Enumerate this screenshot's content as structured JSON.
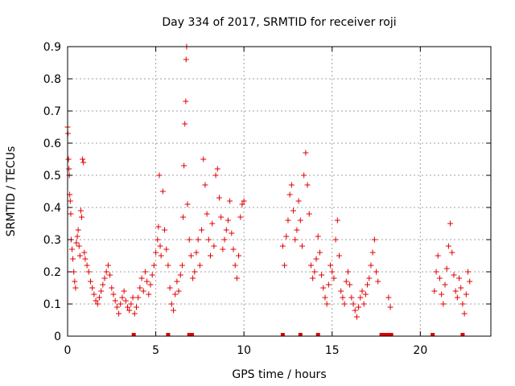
{
  "chart_data": {
    "type": "scatter",
    "title": "Day 334 of 2017, SRMTID for receiver roji",
    "xlabel": "GPS time / hours",
    "ylabel": "SRMTID / TECUs",
    "xlim": [
      0,
      24
    ],
    "ylim": [
      0,
      0.9
    ],
    "x_ticks": [
      0,
      5,
      10,
      15,
      20
    ],
    "y_ticks": [
      0,
      0.1,
      0.2,
      0.3,
      0.4,
      0.5,
      0.6,
      0.7,
      0.8,
      0.9
    ],
    "x_tick_labels": [
      "0",
      "5",
      "10",
      "15",
      "20"
    ],
    "y_tick_labels": [
      "0",
      "0.1",
      "0.2",
      "0.3",
      "0.4",
      "0.5",
      "0.6",
      "0.7",
      "0.8",
      "0.9"
    ],
    "grid": true,
    "marker": "+",
    "color": "#e00000",
    "series": [
      {
        "name": "SRMTID",
        "points": [
          [
            0.0,
            0.65
          ],
          [
            0.02,
            0.63
          ],
          [
            0.05,
            0.55
          ],
          [
            0.08,
            0.52
          ],
          [
            0.1,
            0.5
          ],
          [
            0.12,
            0.44
          ],
          [
            0.15,
            0.42
          ],
          [
            0.18,
            0.38
          ],
          [
            0.2,
            0.3
          ],
          [
            0.25,
            0.27
          ],
          [
            0.3,
            0.24
          ],
          [
            0.35,
            0.2
          ],
          [
            0.4,
            0.17
          ],
          [
            0.45,
            0.15
          ],
          [
            0.5,
            0.29
          ],
          [
            0.55,
            0.31
          ],
          [
            0.6,
            0.33
          ],
          [
            0.65,
            0.28
          ],
          [
            0.7,
            0.25
          ],
          [
            0.75,
            0.39
          ],
          [
            0.8,
            0.37
          ],
          [
            0.85,
            0.55
          ],
          [
            0.9,
            0.54
          ],
          [
            0.95,
            0.26
          ],
          [
            1.0,
            0.24
          ],
          [
            1.1,
            0.22
          ],
          [
            1.2,
            0.2
          ],
          [
            1.3,
            0.17
          ],
          [
            1.4,
            0.15
          ],
          [
            1.5,
            0.13
          ],
          [
            1.6,
            0.11
          ],
          [
            1.7,
            0.1
          ],
          [
            1.8,
            0.12
          ],
          [
            1.9,
            0.14
          ],
          [
            2.0,
            0.16
          ],
          [
            2.1,
            0.18
          ],
          [
            2.2,
            0.2
          ],
          [
            2.3,
            0.22
          ],
          [
            2.4,
            0.19
          ],
          [
            2.5,
            0.15
          ],
          [
            2.6,
            0.13
          ],
          [
            2.7,
            0.11
          ],
          [
            2.8,
            0.09
          ],
          [
            2.9,
            0.07
          ],
          [
            3.0,
            0.1
          ],
          [
            3.1,
            0.12
          ],
          [
            3.2,
            0.14
          ],
          [
            3.3,
            0.11
          ],
          [
            3.4,
            0.09
          ],
          [
            3.5,
            0.08
          ],
          [
            3.6,
            0.1
          ],
          [
            3.7,
            0.12
          ],
          [
            3.8,
            0.07
          ],
          [
            3.9,
            0.09
          ],
          [
            4.0,
            0.12
          ],
          [
            4.1,
            0.15
          ],
          [
            4.2,
            0.18
          ],
          [
            4.3,
            0.14
          ],
          [
            4.4,
            0.2
          ],
          [
            4.5,
            0.17
          ],
          [
            4.6,
            0.13
          ],
          [
            4.7,
            0.16
          ],
          [
            4.8,
            0.19
          ],
          [
            4.9,
            0.22
          ],
          [
            5.0,
            0.26
          ],
          [
            5.1,
            0.3
          ],
          [
            5.15,
            0.34
          ],
          [
            5.2,
            0.5
          ],
          [
            5.25,
            0.28
          ],
          [
            5.3,
            0.25
          ],
          [
            5.4,
            0.45
          ],
          [
            5.5,
            0.33
          ],
          [
            5.6,
            0.27
          ],
          [
            5.7,
            0.22
          ],
          [
            5.8,
            0.15
          ],
          [
            5.9,
            0.1
          ],
          [
            6.0,
            0.08
          ],
          [
            6.1,
            0.13
          ],
          [
            6.2,
            0.17
          ],
          [
            6.3,
            0.14
          ],
          [
            6.4,
            0.19
          ],
          [
            6.5,
            0.22
          ],
          [
            6.55,
            0.37
          ],
          [
            6.6,
            0.53
          ],
          [
            6.65,
            0.66
          ],
          [
            6.7,
            0.73
          ],
          [
            6.72,
            0.86
          ],
          [
            6.75,
            0.9
          ],
          [
            6.8,
            0.41
          ],
          [
            6.9,
            0.3
          ],
          [
            7.0,
            0.25
          ],
          [
            7.1,
            0.18
          ],
          [
            7.2,
            0.2
          ],
          [
            7.3,
            0.26
          ],
          [
            7.4,
            0.3
          ],
          [
            7.5,
            0.22
          ],
          [
            7.6,
            0.33
          ],
          [
            7.7,
            0.55
          ],
          [
            7.8,
            0.47
          ],
          [
            7.9,
            0.38
          ],
          [
            8.0,
            0.3
          ],
          [
            8.1,
            0.25
          ],
          [
            8.2,
            0.35
          ],
          [
            8.3,
            0.28
          ],
          [
            8.4,
            0.5
          ],
          [
            8.5,
            0.52
          ],
          [
            8.6,
            0.43
          ],
          [
            8.7,
            0.37
          ],
          [
            8.8,
            0.27
          ],
          [
            8.9,
            0.3
          ],
          [
            9.0,
            0.33
          ],
          [
            9.1,
            0.36
          ],
          [
            9.2,
            0.42
          ],
          [
            9.3,
            0.32
          ],
          [
            9.4,
            0.27
          ],
          [
            9.5,
            0.22
          ],
          [
            9.6,
            0.18
          ],
          [
            9.7,
            0.25
          ],
          [
            9.8,
            0.37
          ],
          [
            9.9,
            0.41
          ],
          [
            10.0,
            0.42
          ],
          [
            12.2,
            0.28
          ],
          [
            12.3,
            0.22
          ],
          [
            12.4,
            0.31
          ],
          [
            12.5,
            0.36
          ],
          [
            12.6,
            0.44
          ],
          [
            12.7,
            0.47
          ],
          [
            12.8,
            0.39
          ],
          [
            12.9,
            0.3
          ],
          [
            13.0,
            0.33
          ],
          [
            13.1,
            0.42
          ],
          [
            13.2,
            0.36
          ],
          [
            13.3,
            0.28
          ],
          [
            13.4,
            0.5
          ],
          [
            13.5,
            0.57
          ],
          [
            13.6,
            0.47
          ],
          [
            13.7,
            0.38
          ],
          [
            13.8,
            0.22
          ],
          [
            13.9,
            0.18
          ],
          [
            14.0,
            0.2
          ],
          [
            14.1,
            0.24
          ],
          [
            14.2,
            0.31
          ],
          [
            14.3,
            0.26
          ],
          [
            14.4,
            0.19
          ],
          [
            14.5,
            0.15
          ],
          [
            14.6,
            0.12
          ],
          [
            14.7,
            0.1
          ],
          [
            14.8,
            0.16
          ],
          [
            14.9,
            0.22
          ],
          [
            15.0,
            0.2
          ],
          [
            15.1,
            0.18
          ],
          [
            15.2,
            0.3
          ],
          [
            15.3,
            0.36
          ],
          [
            15.4,
            0.25
          ],
          [
            15.5,
            0.14
          ],
          [
            15.6,
            0.12
          ],
          [
            15.7,
            0.1
          ],
          [
            15.8,
            0.17
          ],
          [
            15.9,
            0.2
          ],
          [
            16.0,
            0.16
          ],
          [
            16.1,
            0.12
          ],
          [
            16.2,
            0.1
          ],
          [
            16.3,
            0.08
          ],
          [
            16.4,
            0.06
          ],
          [
            16.5,
            0.09
          ],
          [
            16.6,
            0.12
          ],
          [
            16.7,
            0.14
          ],
          [
            16.8,
            0.1
          ],
          [
            16.9,
            0.13
          ],
          [
            17.0,
            0.16
          ],
          [
            17.1,
            0.18
          ],
          [
            17.2,
            0.22
          ],
          [
            17.3,
            0.26
          ],
          [
            17.4,
            0.3
          ],
          [
            17.5,
            0.2
          ],
          [
            17.6,
            0.17
          ],
          [
            18.2,
            0.12
          ],
          [
            18.3,
            0.09
          ],
          [
            20.8,
            0.14
          ],
          [
            20.9,
            0.2
          ],
          [
            21.0,
            0.25
          ],
          [
            21.1,
            0.18
          ],
          [
            21.2,
            0.13
          ],
          [
            21.3,
            0.1
          ],
          [
            21.4,
            0.16
          ],
          [
            21.5,
            0.21
          ],
          [
            21.6,
            0.28
          ],
          [
            21.7,
            0.35
          ],
          [
            21.8,
            0.26
          ],
          [
            21.9,
            0.19
          ],
          [
            22.0,
            0.14
          ],
          [
            22.1,
            0.12
          ],
          [
            22.2,
            0.18
          ],
          [
            22.3,
            0.15
          ],
          [
            22.4,
            0.1
          ],
          [
            22.5,
            0.07
          ],
          [
            22.6,
            0.13
          ],
          [
            22.7,
            0.2
          ],
          [
            22.8,
            0.17
          ]
        ]
      }
    ],
    "gap_markers_x": [
      3.75,
      5.7,
      6.9,
      7.05,
      12.2,
      13.2,
      14.2,
      17.8,
      17.95,
      18.1,
      18.25,
      18.35,
      20.7,
      22.4
    ]
  }
}
